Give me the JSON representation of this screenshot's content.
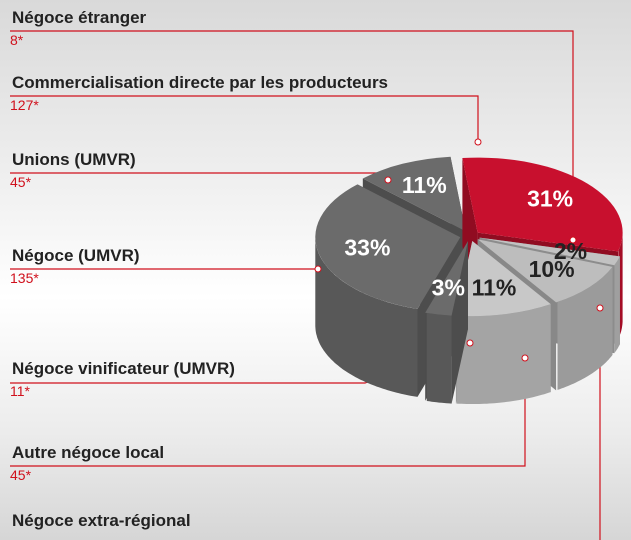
{
  "chart_data": {
    "type": "pie",
    "categories": [
      "Négoce étranger",
      "Commercialisation directe par les producteurs",
      "Unions (UMVR)",
      "Négoce (UMVR)",
      "Négoce vinificateur (UMVR)",
      "Autre négoce local",
      "Négoce extra-régional"
    ],
    "values": [
      2,
      31,
      11,
      33,
      3,
      11,
      10
    ],
    "value_labels": [
      "2%",
      "31%",
      "11%",
      "33%",
      "3%",
      "11%",
      "10%"
    ],
    "counts": [
      8,
      127,
      45,
      135,
      11,
      45,
      null
    ],
    "count_labels": [
      "8*",
      "127*",
      "45*",
      "135*",
      "11*",
      "45*",
      null
    ],
    "colors": [
      "#c2c2c2",
      "#c8102e",
      "#6b6b6b",
      "#6b6b6b",
      "#6b6b6b",
      "#c8c8c8",
      "#bdbdbd"
    ],
    "label_colors": [
      "#222222",
      "#ffffff",
      "#ffffff",
      "#ffffff",
      "#ffffff",
      "#222222",
      "#222222"
    ]
  }
}
